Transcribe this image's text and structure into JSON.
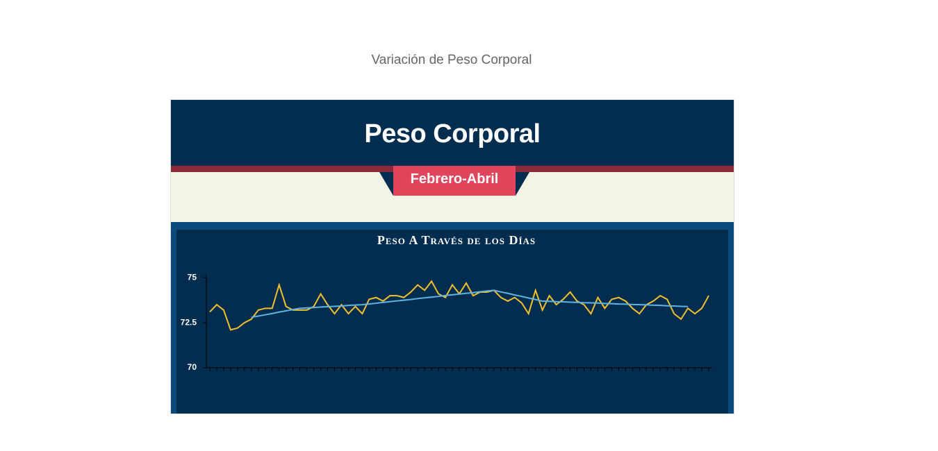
{
  "page": {
    "heading": "Variación de Peso Corporal"
  },
  "infographic": {
    "title": "Peso Corporal",
    "ribbon": "Febrero-Abril"
  },
  "chart_data": {
    "type": "line",
    "title": "Peso A Través de los Días",
    "categories": [
      null,
      null,
      null,
      null,
      null,
      null,
      null,
      null,
      null,
      null,
      null,
      null,
      null,
      null,
      null,
      null,
      null,
      null,
      null,
      null,
      null,
      null,
      null,
      null,
      null,
      null,
      null,
      null,
      null,
      null,
      null,
      null,
      null,
      null,
      null,
      null,
      null,
      null,
      null,
      null,
      null,
      null,
      null,
      null,
      null,
      null,
      null,
      null,
      null,
      null,
      null,
      null,
      null,
      null,
      null,
      null,
      null,
      null,
      null,
      null,
      null,
      null,
      null,
      null,
      null,
      null,
      null,
      null,
      null,
      null,
      null,
      null,
      null
    ],
    "series": [
      {
        "color": "#f2c12e",
        "values": [
          73.1,
          73.5,
          73.2,
          72.1,
          72.2,
          72.5,
          72.7,
          73.2,
          73.3,
          73.3,
          74.6,
          73.4,
          73.2,
          73.2,
          73.2,
          73.4,
          74.1,
          73.5,
          73.0,
          73.5,
          73.0,
          73.4,
          73.0,
          73.8,
          73.9,
          73.7,
          74.0,
          74.0,
          73.9,
          74.2,
          74.6,
          74.3,
          74.8,
          74.1,
          73.9,
          74.6,
          74.1,
          74.7,
          74.0,
          74.2,
          74.2,
          74.3,
          73.9,
          73.7,
          73.9,
          73.6,
          73.0,
          74.3,
          73.2,
          74.0,
          73.5,
          73.8,
          74.2,
          73.7,
          73.5,
          73.0,
          73.9,
          73.3,
          73.8,
          73.9,
          73.7,
          73.3,
          73.0,
          73.5,
          73.7,
          74.0,
          73.8,
          73.0,
          72.7,
          73.3,
          73.0,
          73.3,
          74.0
        ]
      },
      {
        "color": "#5fb4e6",
        "values": [
          null,
          null,
          null,
          null,
          null,
          null,
          72.8,
          72.87,
          72.94,
          73.01,
          73.09,
          73.16,
          73.23,
          73.3,
          73.32,
          73.34,
          73.37,
          73.39,
          73.41,
          73.43,
          73.46,
          73.48,
          73.5,
          73.54,
          73.58,
          73.63,
          73.67,
          73.71,
          73.75,
          73.79,
          73.84,
          73.88,
          73.92,
          73.96,
          74.01,
          74.05,
          74.09,
          74.13,
          74.17,
          74.22,
          74.26,
          74.3,
          74.21,
          74.13,
          74.04,
          73.96,
          73.87,
          73.79,
          73.7,
          73.69,
          73.67,
          73.66,
          73.64,
          73.63,
          73.61,
          73.6,
          73.59,
          73.57,
          73.56,
          73.54,
          73.53,
          73.51,
          73.5,
          73.49,
          73.47,
          73.46,
          73.44,
          73.43,
          73.41,
          73.4,
          null,
          null,
          null
        ]
      }
    ],
    "ylim": [
      70,
      75.2
    ],
    "yticks": [
      70,
      72.5,
      75
    ]
  }
}
